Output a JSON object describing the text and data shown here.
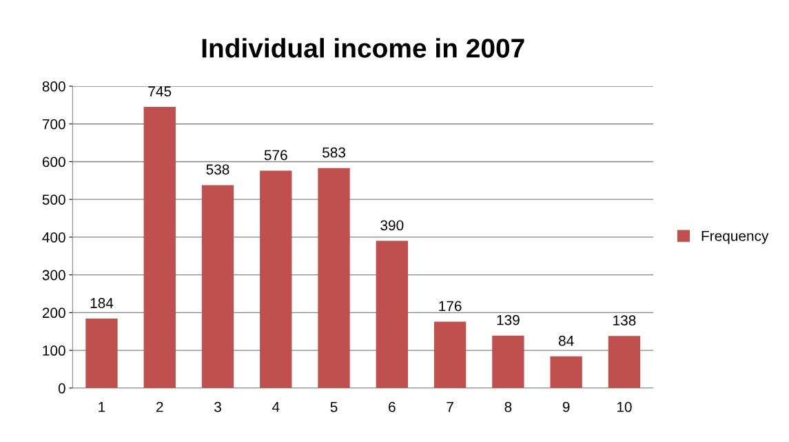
{
  "chart_data": {
    "type": "bar",
    "title": "Individual income in 2007",
    "categories": [
      "1",
      "2",
      "3",
      "4",
      "5",
      "6",
      "7",
      "8",
      "9",
      "10"
    ],
    "series": [
      {
        "name": "Frequency",
        "color": "#c0504d",
        "values": [
          184,
          745,
          538,
          576,
          583,
          390,
          176,
          139,
          84,
          138
        ]
      }
    ],
    "ylim": [
      0,
      800
    ],
    "yticks": [
      0,
      100,
      200,
      300,
      400,
      500,
      600,
      700,
      800
    ],
    "grid": "y",
    "legend": "right",
    "data_labels": true
  }
}
